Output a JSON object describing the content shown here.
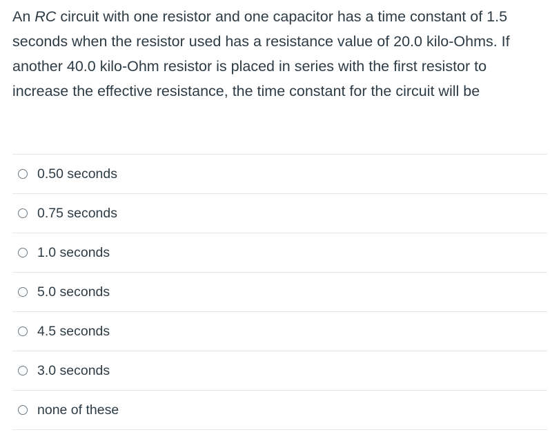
{
  "question": {
    "prefix": "An ",
    "emphasis": "RC",
    "text": " circuit with one resistor and one capacitor has a time constant of 1.5 seconds when the resistor used has a resistance value of 20.0 kilo-Ohms.  If another 40.0 kilo-Ohm resistor is placed in series with the first resistor to increase the effective resistance, the time constant for the circuit will be"
  },
  "answers": [
    {
      "label": "0.50 seconds"
    },
    {
      "label": "0.75 seconds"
    },
    {
      "label": "1.0 seconds"
    },
    {
      "label": "5.0 seconds"
    },
    {
      "label": "4.5 seconds"
    },
    {
      "label": "3.0 seconds"
    },
    {
      "label": "none of these"
    }
  ]
}
